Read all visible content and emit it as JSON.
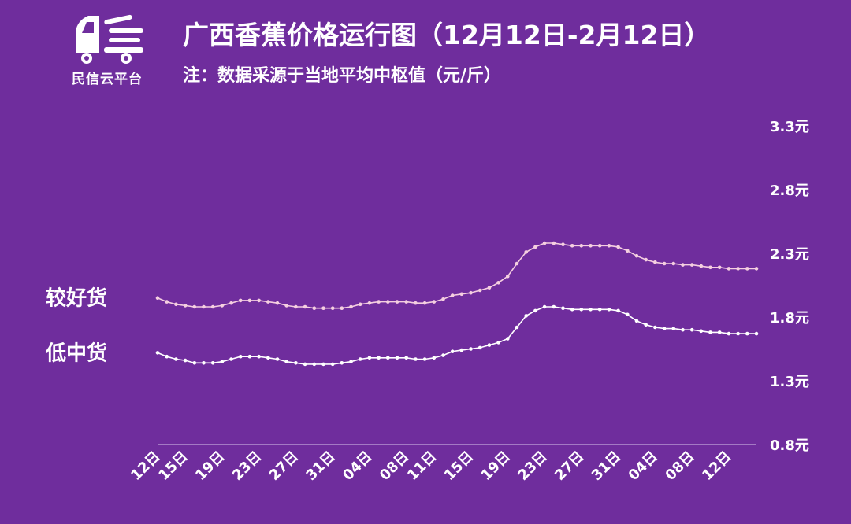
{
  "logo": {
    "text": "民信云平台"
  },
  "header": {
    "title": "广西香蕉价格运行图（12月12日-2月12日）",
    "subtitle": "注：数据采源于当地平均中枢值（元/斤）"
  },
  "colors": {
    "background": "#6f2d9d",
    "series_better": "#f5cfe0",
    "series_low": "#ffffff",
    "axis": "#d9c6ea"
  },
  "chart_data": {
    "type": "line",
    "ylim": [
      0.8,
      3.3
    ],
    "yticks": [
      "0.8元",
      "1.3元",
      "1.8元",
      "2.3元",
      "2.8元",
      "3.3元"
    ],
    "ytick_values": [
      0.8,
      1.3,
      1.8,
      2.3,
      2.8,
      3.3
    ],
    "xtick_labels": [
      "12日",
      "15日",
      "19日",
      "23日",
      "27日",
      "31日",
      "04日",
      "08日",
      "11日",
      "15日",
      "19日",
      "23日",
      "27日",
      "31日",
      "04日",
      "08日",
      "12日"
    ],
    "xtick_index": [
      0,
      3,
      7,
      11,
      15,
      19,
      23,
      27,
      30,
      34,
      38,
      42,
      46,
      50,
      54,
      58,
      62
    ],
    "series": [
      {
        "name": "较好货",
        "values": [
          1.95,
          1.92,
          1.9,
          1.89,
          1.88,
          1.88,
          1.88,
          1.89,
          1.91,
          1.93,
          1.93,
          1.93,
          1.92,
          1.91,
          1.89,
          1.88,
          1.88,
          1.87,
          1.87,
          1.87,
          1.87,
          1.88,
          1.9,
          1.91,
          1.92,
          1.92,
          1.92,
          1.92,
          1.91,
          1.91,
          1.92,
          1.94,
          1.97,
          1.98,
          1.99,
          2.01,
          2.03,
          2.07,
          2.12,
          2.22,
          2.31,
          2.35,
          2.38,
          2.38,
          2.37,
          2.36,
          2.36,
          2.36,
          2.36,
          2.36,
          2.35,
          2.32,
          2.28,
          2.25,
          2.23,
          2.22,
          2.22,
          2.21,
          2.21,
          2.2,
          2.19,
          2.19,
          2.18,
          2.18,
          2.18,
          2.18
        ]
      },
      {
        "name": "低中货",
        "values": [
          1.52,
          1.49,
          1.47,
          1.46,
          1.44,
          1.44,
          1.44,
          1.45,
          1.47,
          1.49,
          1.49,
          1.49,
          1.48,
          1.47,
          1.45,
          1.44,
          1.43,
          1.43,
          1.43,
          1.43,
          1.44,
          1.45,
          1.47,
          1.48,
          1.48,
          1.48,
          1.48,
          1.48,
          1.47,
          1.47,
          1.48,
          1.5,
          1.53,
          1.54,
          1.55,
          1.56,
          1.58,
          1.6,
          1.63,
          1.72,
          1.81,
          1.85,
          1.88,
          1.88,
          1.87,
          1.86,
          1.86,
          1.86,
          1.86,
          1.86,
          1.85,
          1.82,
          1.77,
          1.74,
          1.72,
          1.71,
          1.71,
          1.7,
          1.7,
          1.69,
          1.68,
          1.68,
          1.67,
          1.67,
          1.67,
          1.67
        ]
      }
    ]
  }
}
